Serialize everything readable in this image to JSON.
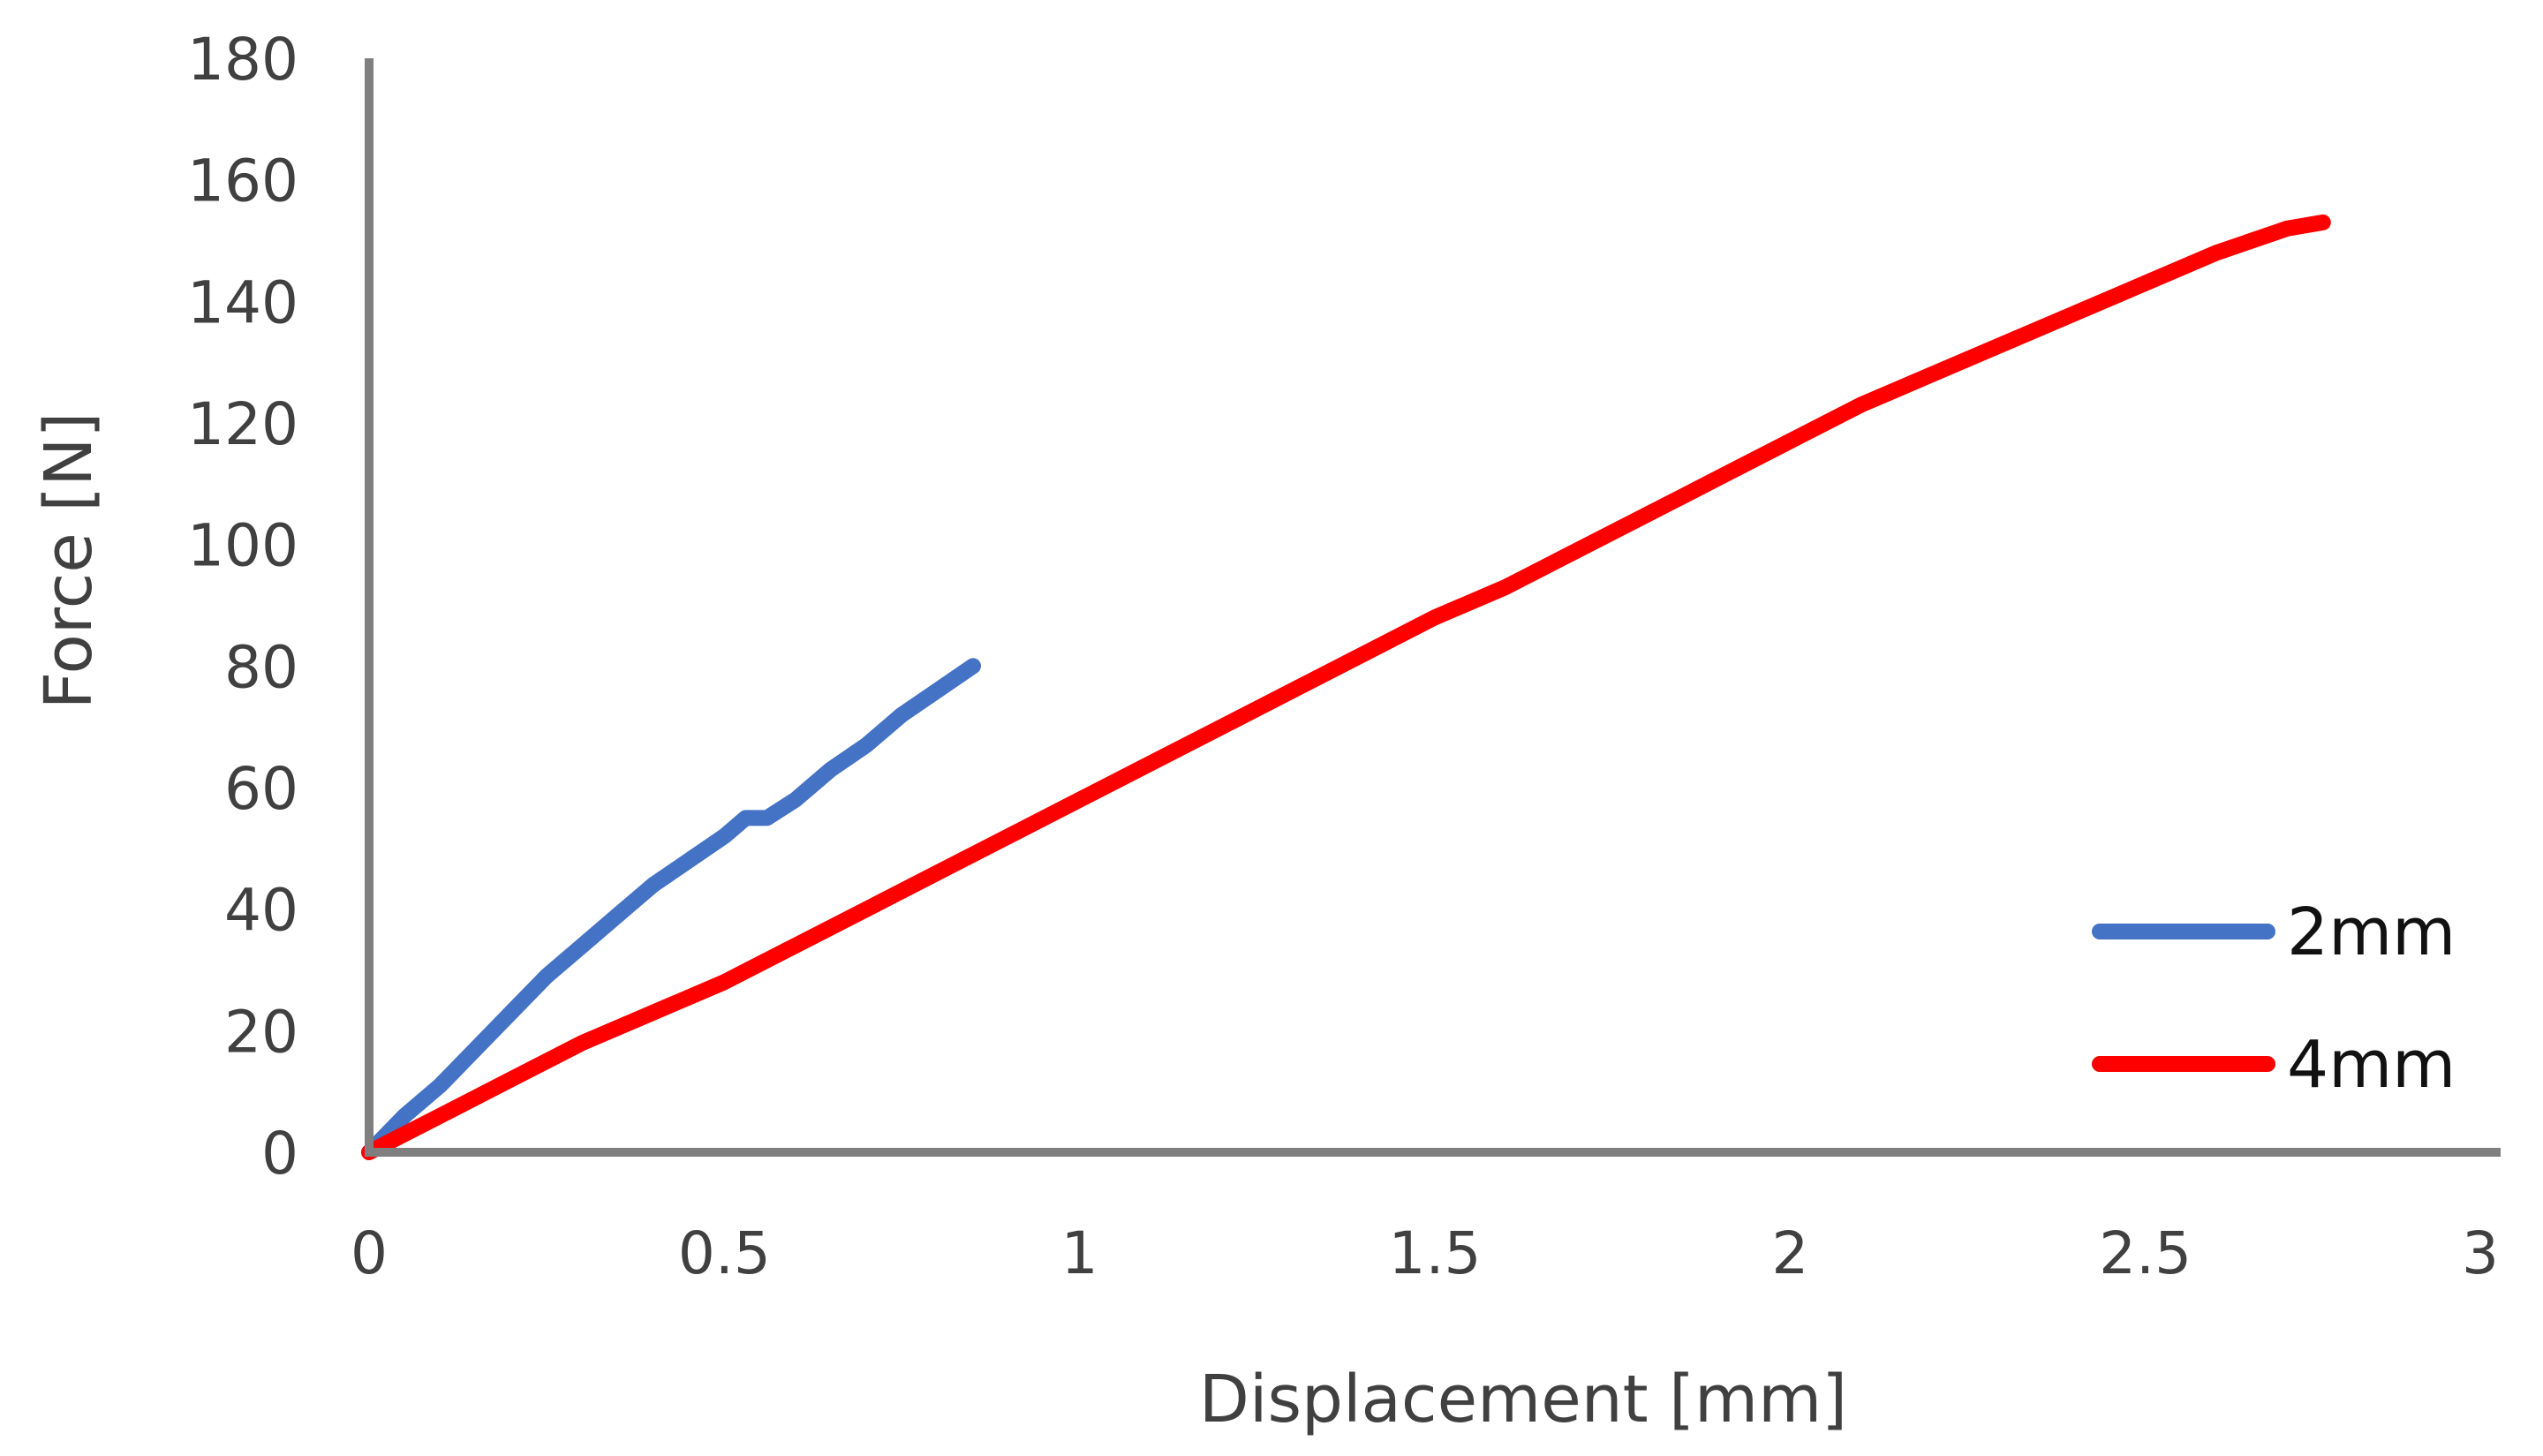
{
  "chart_data": {
    "type": "line",
    "title": "",
    "xlabel": "Displacement [mm]",
    "ylabel": "Force [N]",
    "xlim": [
      0,
      3
    ],
    "ylim": [
      0,
      180
    ],
    "xticks": [
      0,
      0.5,
      1,
      1.5,
      2,
      2.5,
      3
    ],
    "xtick_labels": [
      "0",
      "0.5",
      "1",
      "1.5",
      "2",
      "2.5",
      "3"
    ],
    "yticks": [
      0,
      20,
      40,
      60,
      80,
      100,
      120,
      140,
      160,
      180
    ],
    "ytick_labels": [
      "0",
      "20",
      "40",
      "60",
      "80",
      "100",
      "120",
      "140",
      "160",
      "180"
    ],
    "grid": false,
    "legend_position": "bottom-right",
    "series": [
      {
        "name": "2mm",
        "color": "#4472C4",
        "x": [
          0,
          0.05,
          0.1,
          0.15,
          0.2,
          0.25,
          0.3,
          0.35,
          0.4,
          0.45,
          0.5,
          0.53,
          0.56,
          0.6,
          0.65,
          0.7,
          0.75,
          0.8,
          0.85
        ],
        "y": [
          0,
          6,
          11,
          17,
          23,
          29,
          34,
          39,
          44,
          48,
          52,
          55,
          55,
          58,
          63,
          67,
          72,
          76,
          80
        ]
      },
      {
        "name": "4mm",
        "color": "#FF0000",
        "x": [
          0,
          0.1,
          0.2,
          0.3,
          0.4,
          0.5,
          0.6,
          0.7,
          0.8,
          0.9,
          1.0,
          1.1,
          1.2,
          1.3,
          1.4,
          1.5,
          1.6,
          1.7,
          1.8,
          1.9,
          2.0,
          2.1,
          2.2,
          2.3,
          2.4,
          2.5,
          2.6,
          2.7,
          2.75
        ],
        "y": [
          0,
          6,
          12,
          18,
          23,
          28,
          34,
          40,
          46,
          52,
          58,
          64,
          70,
          76,
          82,
          88,
          93,
          99,
          105,
          111,
          117,
          123,
          128,
          133,
          138,
          143,
          148,
          152,
          153
        ]
      }
    ]
  }
}
